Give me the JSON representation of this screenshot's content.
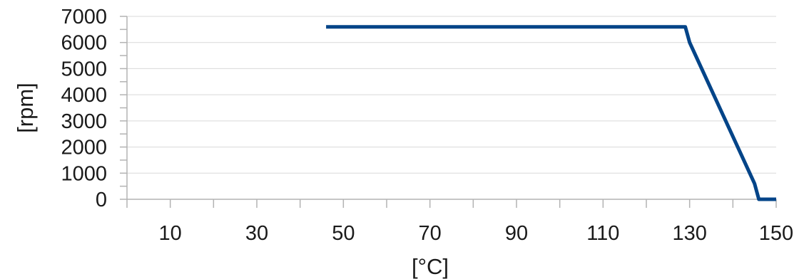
{
  "chart_data": {
    "type": "line",
    "title": "",
    "xlabel": "[°C]",
    "ylabel": "[rpm]",
    "xlim": [
      0,
      150
    ],
    "ylim": [
      0,
      7000
    ],
    "x_ticks": [
      10,
      30,
      50,
      70,
      90,
      110,
      130,
      150
    ],
    "x_tick_labels": [
      "10",
      "30",
      "50",
      "70",
      "90",
      "110",
      "130",
      "150"
    ],
    "y_ticks": [
      0,
      1000,
      2000,
      3000,
      4000,
      5000,
      6000,
      7000
    ],
    "y_tick_labels": [
      "0",
      "1000",
      "2000",
      "3000",
      "4000",
      "5000",
      "6000",
      "7000"
    ],
    "grid": "horizontal",
    "legend": "none",
    "series": [
      {
        "color": "#034488",
        "x": [
          46,
          129,
          130,
          145,
          146,
          150
        ],
        "y": [
          6600,
          6600,
          6000,
          600,
          0,
          0
        ]
      }
    ]
  }
}
